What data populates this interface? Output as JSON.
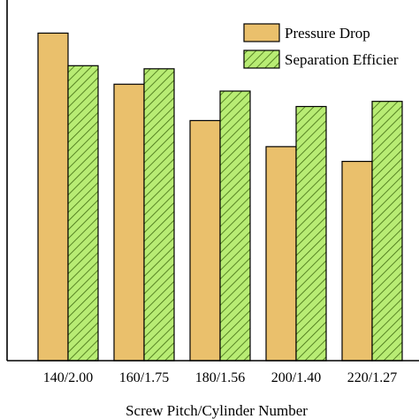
{
  "chart_data": {
    "type": "bar",
    "xlabel": "Screw Pitch/Cylinder Number",
    "categories": [
      "140/2.00",
      "160/1.75",
      "180/1.56",
      "200/1.40",
      "220/1.27"
    ],
    "y_axis": {
      "ticks_visible": false,
      "grid": false
    },
    "legend": {
      "placement": "top-right"
    },
    "series": [
      {
        "name": "Pressure Drop",
        "values": [
          0.955,
          0.806,
          0.7,
          0.624,
          0.581
        ],
        "fill": "#eac06c",
        "pattern": "solid"
      },
      {
        "name": "Separation Efficier",
        "values": [
          0.86,
          0.851,
          0.786,
          0.741,
          0.756
        ],
        "fill": "#b8ec74",
        "pattern": "hatch",
        "hatch_color": "#3f6b10"
      }
    ],
    "ylim": [
      0,
      1
    ]
  }
}
